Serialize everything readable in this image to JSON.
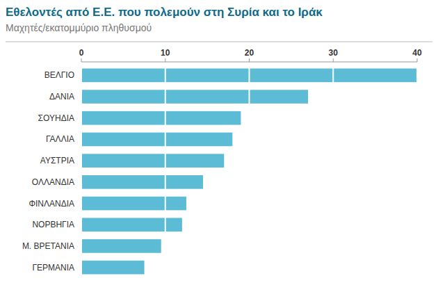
{
  "chart_data": {
    "type": "bar",
    "orientation": "horizontal",
    "title": "Εθελοντές από Ε.Ε. που πολεμούν στη Συρία και το Ιράκ",
    "subtitle": "Μαχητές/εκατομμύριο πληθυσμού",
    "categories": [
      "ΒΕΛΓΙΟ",
      "ΔΑΝΙΑ",
      "ΣΟΥΗΔΙΑ",
      "ΓΑΛΛΙΑ",
      "ΑΥΣΤΡΙΑ",
      "ΟΛΛΑΝΔΙΑ",
      "ΦΙΝΛΑΝΔΙΑ",
      "ΝΟΡΒΗΓΙΑ",
      "Μ. ΒΡΕΤΑΝΙΑ",
      "ΓΕΡΜΑΝΙΑ"
    ],
    "values": [
      40,
      27,
      19,
      18,
      17,
      14.5,
      12.5,
      12,
      9.5,
      7.5
    ],
    "color": "#5cbcd5",
    "xlim": [
      0,
      40
    ],
    "xticks": [
      0,
      10,
      20,
      30,
      40
    ],
    "grid": true
  }
}
